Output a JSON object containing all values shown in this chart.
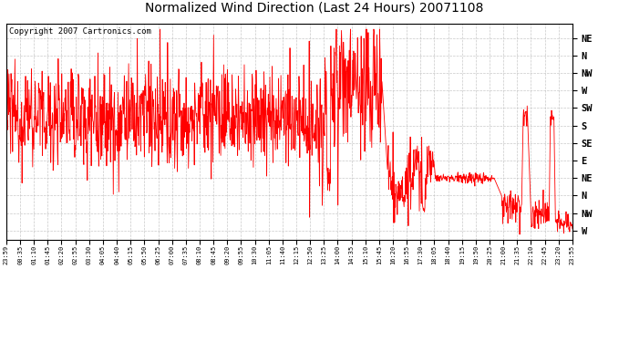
{
  "title": "Normalized Wind Direction (Last 24 Hours) 20071108",
  "copyright": "Copyright 2007 Cartronics.com",
  "background_color": "#ffffff",
  "plot_bg_color": "#ffffff",
  "line_color": "#ff0000",
  "grid_color": "#bbbbbb",
  "ytick_labels": [
    "NE",
    "N",
    "NW",
    "W",
    "SW",
    "S",
    "SE",
    "E",
    "NE",
    "N",
    "NW",
    "W"
  ],
  "ytick_values": [
    11,
    10,
    9,
    8,
    7,
    6,
    5,
    4,
    3,
    2,
    1,
    0
  ],
  "xtick_labels": [
    "23:59",
    "00:35",
    "01:10",
    "01:45",
    "02:20",
    "02:55",
    "03:30",
    "04:05",
    "04:40",
    "05:15",
    "05:50",
    "06:25",
    "07:00",
    "07:35",
    "08:10",
    "08:45",
    "09:20",
    "09:55",
    "10:30",
    "11:05",
    "11:40",
    "12:15",
    "12:50",
    "13:25",
    "14:00",
    "14:35",
    "15:10",
    "15:45",
    "16:20",
    "16:55",
    "17:30",
    "18:05",
    "18:40",
    "19:15",
    "19:50",
    "20:25",
    "21:00",
    "21:35",
    "22:10",
    "22:45",
    "23:20",
    "23:55"
  ],
  "figsize": [
    6.9,
    3.75
  ],
  "dpi": 100
}
